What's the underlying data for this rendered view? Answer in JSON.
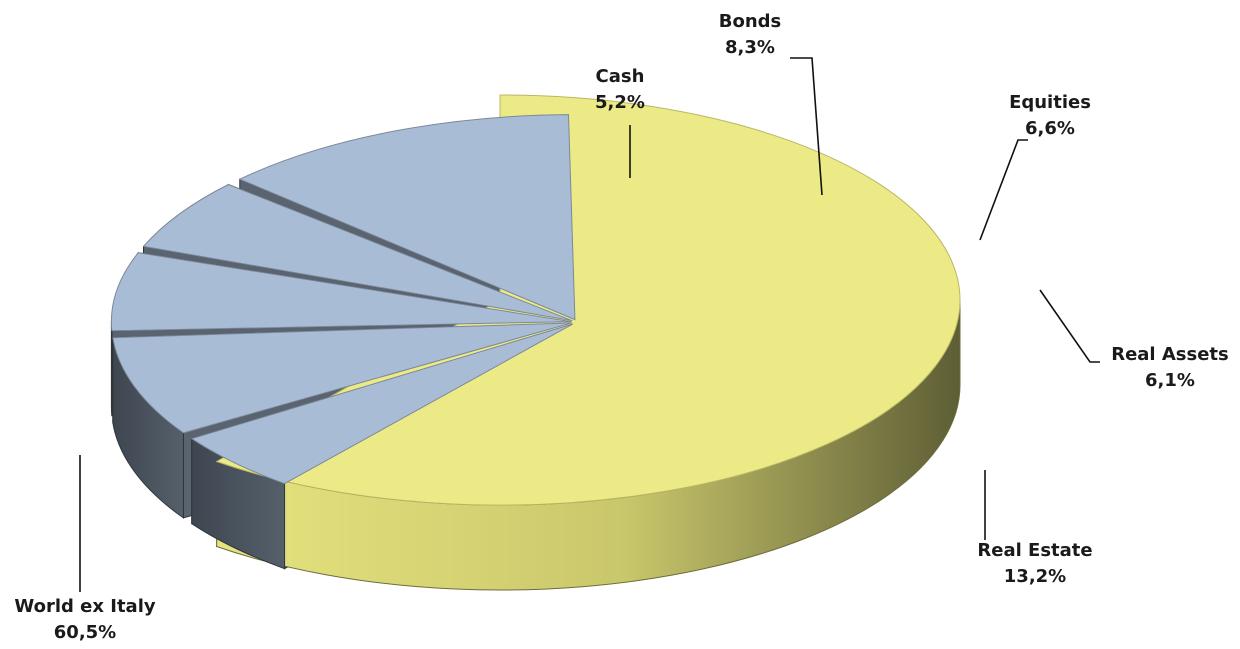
{
  "chart_data": {
    "type": "pie",
    "title": "",
    "slices": [
      {
        "label": "World ex Italy",
        "value": 60.5,
        "value_text": "60,5%",
        "color": "#ECEA86",
        "exploded": false
      },
      {
        "label": "Cash",
        "value": 5.2,
        "value_text": "5,2%",
        "color": "#A9BCD6",
        "exploded": true
      },
      {
        "label": "Bonds",
        "value": 8.3,
        "value_text": "8,3%",
        "color": "#A9BCD6",
        "exploded": true
      },
      {
        "label": "Equities",
        "value": 6.6,
        "value_text": "6,6%",
        "color": "#A9BCD6",
        "exploded": true
      },
      {
        "label": "Real Assets",
        "value": 6.1,
        "value_text": "6,1%",
        "color": "#A9BCD6",
        "exploded": true
      },
      {
        "label": "Real Estate",
        "value": 13.2,
        "value_text": "13,2%",
        "color": "#A9BCD6",
        "exploded": true
      }
    ],
    "style": "3d-exploded-pie",
    "legend": "none",
    "side_color": "#4A525C"
  }
}
